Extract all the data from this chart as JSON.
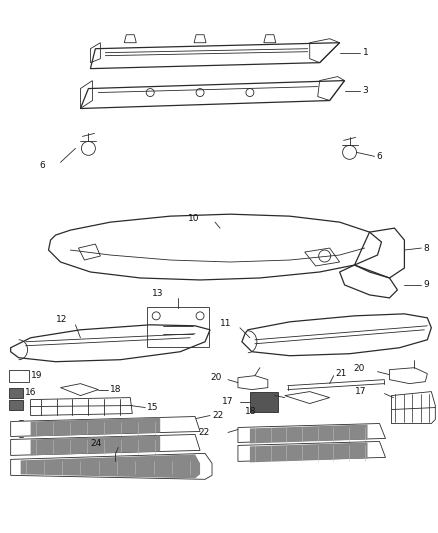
{
  "bg_color": "#ffffff",
  "line_color": "#2a2a2a",
  "fig_width": 4.38,
  "fig_height": 5.33,
  "dpi": 100,
  "lw_thin": 0.6,
  "lw_med": 0.9,
  "lw_thick": 1.2,
  "label_fs": 6.5,
  "gray_fill": "#888888",
  "dark_fill": "#444444",
  "light_gray": "#cccccc"
}
